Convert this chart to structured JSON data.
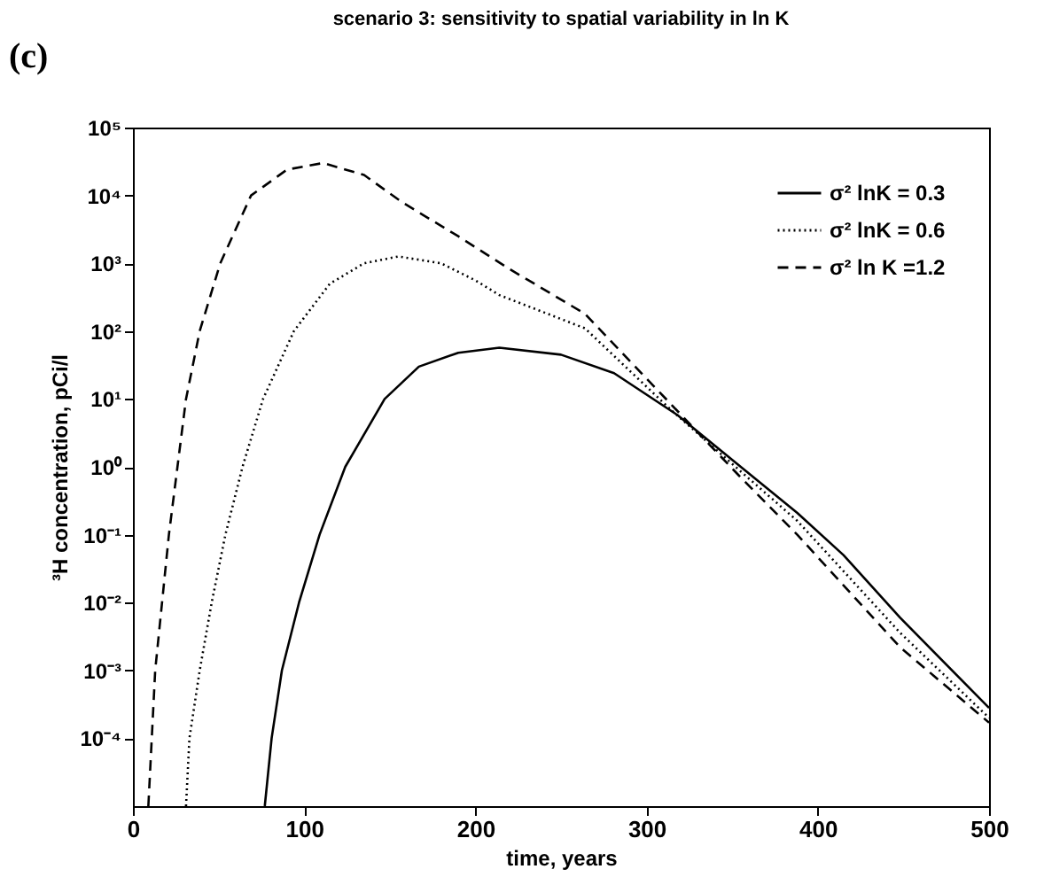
{
  "chart_data": {
    "type": "line",
    "title": "scenario 3: sensitivity to spatial variability in ln K",
    "xlabel": "time, years",
    "ylabel": "³H concentration, pCi/l",
    "annotations": [
      "(c)"
    ],
    "log": "y",
    "grid": false,
    "legend": "top right",
    "marker": "none",
    "xlim": [
      0,
      500
    ],
    "xticks": [
      0,
      100,
      200,
      300,
      400,
      500
    ],
    "ylim": [
      1e-05,
      100000
    ],
    "yticks": [
      {
        "value": 0.0001,
        "label": "10⁻⁴"
      },
      {
        "value": 0.001,
        "label": "10⁻³"
      },
      {
        "value": 0.01,
        "label": "10⁻²"
      },
      {
        "value": 0.1,
        "label": "10⁻¹"
      },
      {
        "value": 1,
        "label": "10⁰"
      },
      {
        "value": 10,
        "label": "10¹"
      },
      {
        "value": 100,
        "label": "10²"
      },
      {
        "value": 1000,
        "label": "10³"
      },
      {
        "value": 10000,
        "label": "10⁴"
      },
      {
        "value": 100000,
        "label": "10⁵"
      }
    ],
    "series": [
      {
        "name": "σ² lnK = 0.3",
        "color": "#000000",
        "line_style": "solid",
        "x": [
          77,
          81,
          87,
          97,
          109,
          124,
          147,
          167,
          190,
          214,
          250,
          281,
          318,
          355,
          388,
          415,
          448,
          500
        ],
        "values": [
          1e-05,
          0.0001,
          0.001,
          0.01,
          0.1,
          1,
          10,
          30,
          48,
          57,
          45,
          24,
          5.8,
          1,
          0.21,
          0.05,
          0.006,
          0.00028
        ]
      },
      {
        "name": "σ² lnK = 0.6",
        "color": "#000000",
        "line_style": "dotted",
        "x": [
          31,
          33,
          39,
          46,
          54,
          64,
          76,
          94,
          115,
          135,
          155,
          180,
          200,
          214,
          264,
          314,
          354,
          388,
          448,
          500
        ],
        "values": [
          1e-05,
          0.0001,
          0.001,
          0.01,
          0.1,
          1,
          10,
          100,
          500,
          1000,
          1260,
          1000,
          560,
          340,
          110,
          7,
          0.9,
          0.16,
          0.0036,
          0.0002
        ]
      },
      {
        "name": "σ² ln K =1.2",
        "color": "#000000",
        "line_style": "dashed",
        "x": [
          9,
          11,
          13,
          17,
          21,
          26,
          31,
          39,
          51,
          69,
          90,
          111,
          135,
          157,
          190,
          219,
          264,
          314,
          354,
          388,
          448,
          500
        ],
        "values": [
          1e-05,
          0.0001,
          0.001,
          0.01,
          0.1,
          1,
          10,
          100,
          1000,
          10000,
          24000,
          30000,
          20000,
          8000,
          2500,
          850,
          180,
          8.5,
          0.74,
          0.1,
          0.0022,
          0.00017
        ]
      }
    ]
  }
}
